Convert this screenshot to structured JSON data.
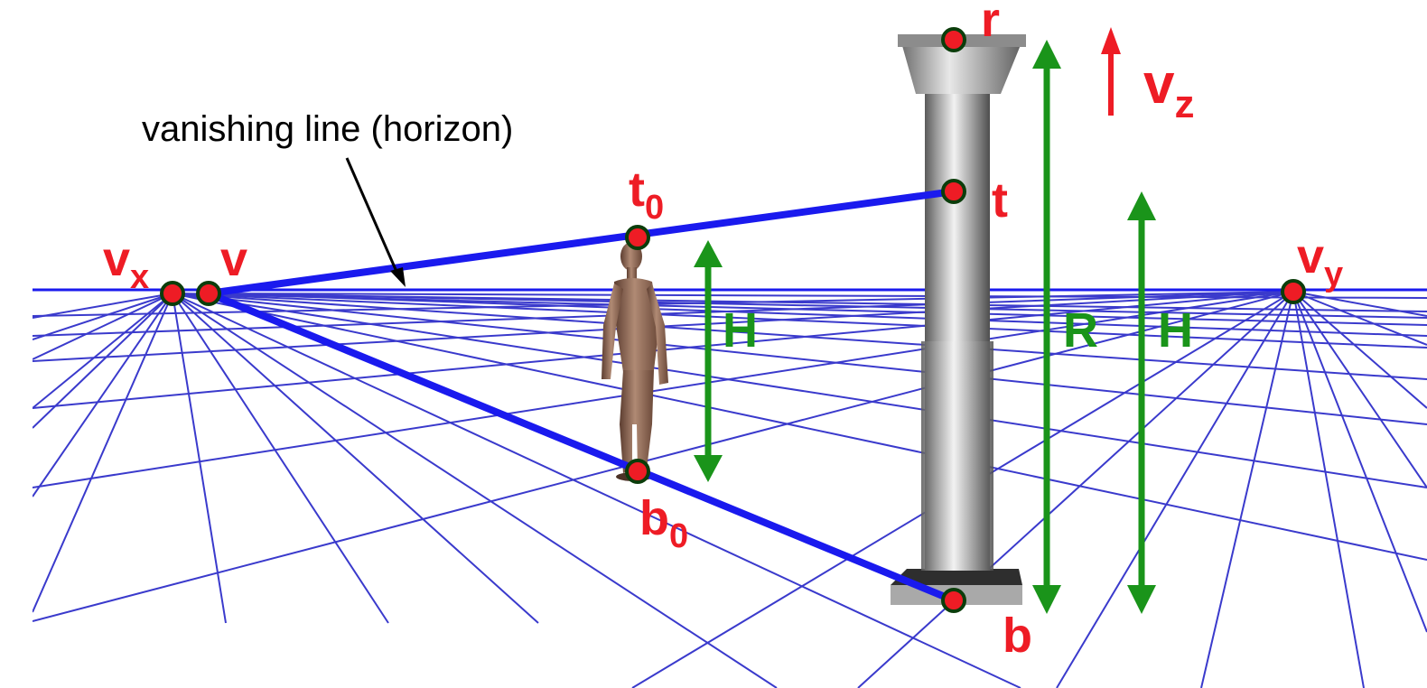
{
  "annotation": {
    "horizon_label": "vanishing line (horizon)"
  },
  "points": {
    "vx": {
      "main": "v",
      "sub": "x"
    },
    "v": {
      "main": "v"
    },
    "vy": {
      "main": "v",
      "sub": "y"
    },
    "vz": {
      "main": "v",
      "sub": "z"
    },
    "t0": {
      "main": "t",
      "sub": "0"
    },
    "b0": {
      "main": "b",
      "sub": "0"
    },
    "t": {
      "main": "t"
    },
    "b": {
      "main": "b"
    },
    "r": {
      "main": "r"
    }
  },
  "measures": {
    "person_height": "H",
    "column_height": "R",
    "reference_height": "H"
  },
  "colors": {
    "grid": "#3a3acc",
    "construction_line": "#1a1aee",
    "point_fill": "#ee1c25",
    "point_stroke": "#0b3d0b",
    "label_red": "#ee1c25",
    "arrow_green": "#1a941a",
    "column": "#9a9a9a",
    "figure": "#8a6452"
  },
  "icons": {
    "person": "human-figure",
    "column": "corinthian-column"
  }
}
